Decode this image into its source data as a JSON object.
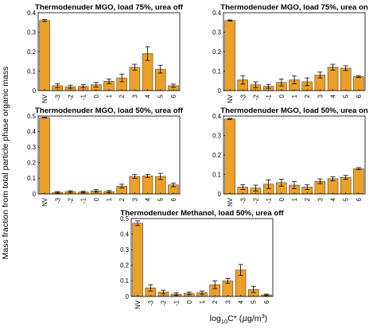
{
  "figure": {
    "ylabel": "Mass fraction from total particle phase organic mass",
    "xlabel": "log10C* (μg/m3)",
    "xlabel_main": "log",
    "xlabel_sub": "10",
    "xlabel_rest": "C* (",
    "xlabel_mu": "μ",
    "xlabel_unit": "g/m",
    "xlabel_sup": "3",
    "xlabel_close": ")",
    "bar_color": "#EBA029"
  },
  "chart_data": [
    {
      "type": "bar",
      "title": "Thermodenuder MGO, load 75%, urea off",
      "categories": [
        "NV",
        "-3",
        "-2",
        "-1",
        "0",
        "1",
        "2",
        "3",
        "4",
        "5",
        "6"
      ],
      "values": [
        0.36,
        0.025,
        0.02,
        0.022,
        0.03,
        0.048,
        0.065,
        0.12,
        0.19,
        0.11,
        0.025
      ],
      "errors": [
        0.005,
        0.01,
        0.008,
        0.008,
        0.012,
        0.012,
        0.02,
        0.015,
        0.035,
        0.02,
        0.008
      ],
      "ylim": [
        0,
        0.4
      ],
      "yticks": [
        "0",
        "0.1",
        "0.2",
        "0.3",
        "0.4"
      ],
      "xlabel": "",
      "ylabel": ""
    },
    {
      "type": "bar",
      "title": "Thermodenuder MGO, load 75%, urea on",
      "categories": [
        "NV",
        "-3",
        "-2",
        "-1",
        "0",
        "1",
        "2",
        "3",
        "4",
        "5",
        "6"
      ],
      "values": [
        0.36,
        0.055,
        0.03,
        0.022,
        0.042,
        0.055,
        0.045,
        0.08,
        0.12,
        0.115,
        0.072
      ],
      "errors": [
        0.003,
        0.022,
        0.015,
        0.01,
        0.018,
        0.02,
        0.02,
        0.015,
        0.015,
        0.012,
        0.005
      ],
      "ylim": [
        0,
        0.4
      ],
      "yticks": [
        "0",
        "0.1",
        "0.2",
        "0.3",
        "0.4"
      ],
      "xlabel": "",
      "ylabel": ""
    },
    {
      "type": "bar",
      "title": "Thermodenuder MGO, load 50%, urea off",
      "categories": [
        "NV",
        "-3",
        "-2",
        "-1",
        "0",
        "1",
        "2",
        "3",
        "4",
        "5",
        "6"
      ],
      "values": [
        0.49,
        0.01,
        0.015,
        0.012,
        0.02,
        0.015,
        0.05,
        0.112,
        0.115,
        0.112,
        0.058
      ],
      "errors": [
        0.003,
        0.005,
        0.005,
        0.005,
        0.008,
        0.006,
        0.012,
        0.012,
        0.01,
        0.02,
        0.012
      ],
      "ylim": [
        0,
        0.5
      ],
      "yticks": [
        "0",
        "0.1",
        "0.2",
        "0.3",
        "0.4",
        "0.5"
      ],
      "xlabel": "",
      "ylabel": ""
    },
    {
      "type": "bar",
      "title": "Thermodenuder MGO, load 50%, urea on",
      "categories": [
        "NV",
        "-3",
        "-2",
        "-1",
        "0",
        "1",
        "2",
        "3",
        "4",
        "5",
        "6"
      ],
      "values": [
        0.385,
        0.035,
        0.03,
        0.05,
        0.058,
        0.045,
        0.035,
        0.065,
        0.078,
        0.085,
        0.13
      ],
      "errors": [
        0.003,
        0.012,
        0.015,
        0.022,
        0.018,
        0.018,
        0.012,
        0.012,
        0.01,
        0.01,
        0.005
      ],
      "ylim": [
        0,
        0.4
      ],
      "yticks": [
        "0",
        "0.1",
        "0.2",
        "0.3",
        "0.4"
      ],
      "xlabel": "",
      "ylabel": ""
    },
    {
      "type": "bar",
      "title": "Thermodenuder Methanol, load 50%, urea off",
      "categories": [
        "NV",
        "-3",
        "-2",
        "-1",
        "0",
        "1",
        "2",
        "3",
        "4",
        "5",
        "6"
      ],
      "values": [
        0.47,
        0.055,
        0.028,
        0.015,
        0.02,
        0.025,
        0.075,
        0.1,
        0.17,
        0.045,
        0.01
      ],
      "errors": [
        0.015,
        0.02,
        0.012,
        0.008,
        0.008,
        0.01,
        0.025,
        0.015,
        0.035,
        0.02,
        0.005
      ],
      "ylim": [
        0,
        0.5
      ],
      "yticks": [
        "0",
        "0.1",
        "0.2",
        "0.3",
        "0.4",
        "0.5"
      ],
      "xlabel": "",
      "ylabel": ""
    }
  ]
}
